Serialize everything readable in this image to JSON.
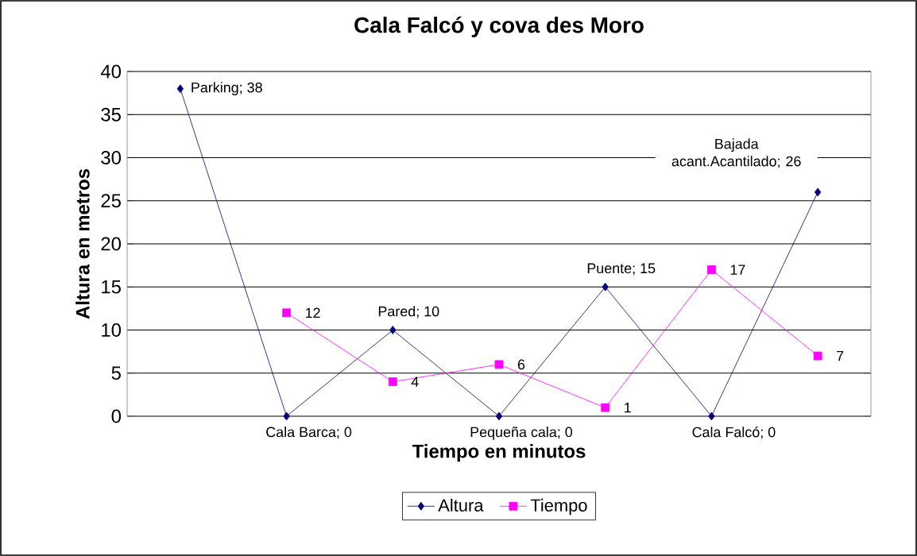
{
  "chart_data": {
    "type": "line",
    "title": "Cala Falcó y cova des Moro",
    "xlabel": "Tiempo en minutos",
    "ylabel": "Altura en metros",
    "categories": [
      null,
      null,
      null,
      null,
      null,
      null,
      null
    ],
    "series": [
      {
        "name": "Altura",
        "color": "#000080",
        "marker": "diamond",
        "values": [
          38,
          0,
          10,
          0,
          15,
          0,
          26
        ],
        "value_labels": [
          "Parking; 38",
          "Cala Barca; 0",
          "Pared; 10",
          "Pequeña cala; 0",
          "Puente; 15",
          "Cala Falcó; 0",
          "Bajada acant.Acantilado; 26"
        ]
      },
      {
        "name": "Tiempo",
        "color": "#ff00ff",
        "marker": "square",
        "values": [
          null,
          12,
          4,
          6,
          1,
          17,
          7
        ],
        "value_labels": [
          null,
          "12",
          "4",
          "6",
          "1",
          "17",
          "7"
        ]
      }
    ],
    "ylim": [
      0,
      40
    ],
    "yticks": [
      0,
      5,
      10,
      15,
      20,
      25,
      30,
      35,
      40
    ],
    "grid": "y",
    "legend": "bottom"
  }
}
